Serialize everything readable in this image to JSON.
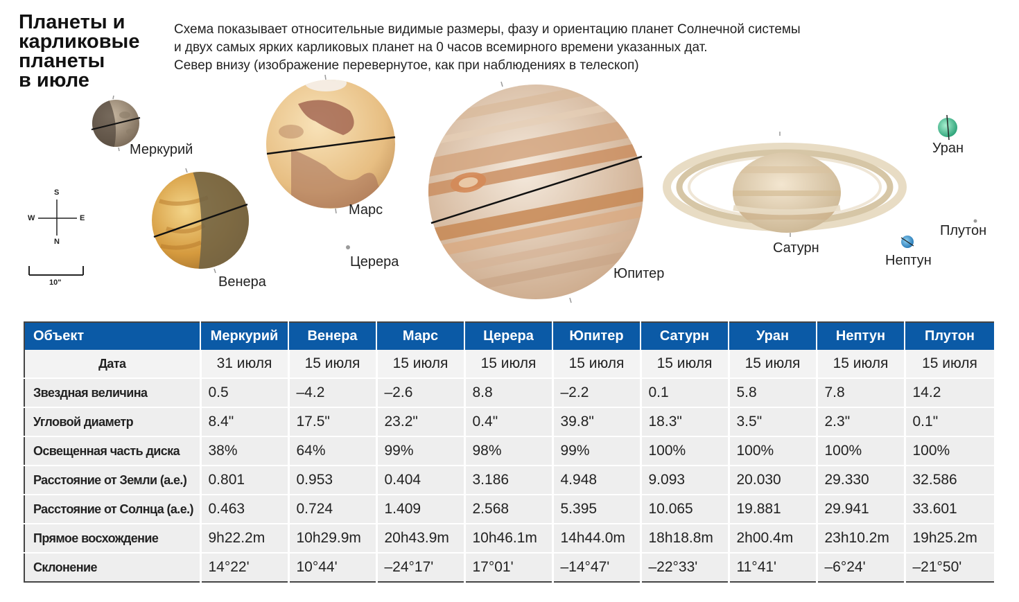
{
  "title": {
    "lines": [
      "Планеты и",
      "карликовые",
      "планеты",
      "в июле"
    ]
  },
  "description": {
    "lines": [
      "Схема показывает относительные видимые размеры, фазу и ориентацию планет Солнечной системы",
      "и двух самых ярких карликовых планет на 0 часов всемирного времени указанных дат.",
      "Север внизу (изображение перевернутое, как при наблюдениях в телескоп)"
    ]
  },
  "planets": {
    "mercury": "Меркурий",
    "venus": "Венера",
    "mars": "Марс",
    "ceres": "Церера",
    "jupiter": "Юпитер",
    "saturn": "Сатурн",
    "uranus": "Уран",
    "neptune": "Нептун",
    "pluto": "Плутон"
  },
  "compass": {
    "s": "S",
    "w": "W",
    "e": "E",
    "n": "N"
  },
  "scale_bar": {
    "label": "10\""
  },
  "colors": {
    "header": "#0b5aa6",
    "cell": "#eeeeee"
  },
  "table": {
    "columns": [
      "Объект",
      "Меркурий",
      "Венера",
      "Марс",
      "Церера",
      "Юпитер",
      "Сатурн",
      "Уран",
      "Нептун",
      "Плутон"
    ],
    "rows": [
      {
        "label": "Дата",
        "values": [
          "31 июля",
          "15 июля",
          "15 июля",
          "15 июля",
          "15 июля",
          "15 июля",
          "15 июля",
          "15 июля",
          "15 июля"
        ]
      },
      {
        "label": "Звездная величина",
        "values": [
          "0.5",
          "–4.2",
          "–2.6",
          "8.8",
          "–2.2",
          "0.1",
          "5.8",
          "7.8",
          "14.2"
        ]
      },
      {
        "label": "Угловой диаметр",
        "values": [
          "8.4\"",
          "17.5\"",
          "23.2\"",
          "0.4\"",
          "39.8\"",
          "18.3\"",
          "3.5\"",
          "2.3\"",
          "0.1\""
        ]
      },
      {
        "label": "Освещенная часть диска",
        "values": [
          "38%",
          "64%",
          "99%",
          "98%",
          "99%",
          "100%",
          "100%",
          "100%",
          "100%"
        ]
      },
      {
        "label": "Расстояние от Земли (а.е.)",
        "values": [
          "0.801",
          "0.953",
          "0.404",
          "3.186",
          "4.948",
          "9.093",
          "20.030",
          "29.330",
          "32.586"
        ]
      },
      {
        "label": "Расстояние от Солнца (а.е.)",
        "values": [
          "0.463",
          "0.724",
          "1.409",
          "2.568",
          "5.395",
          "10.065",
          "19.881",
          "29.941",
          "33.601"
        ]
      },
      {
        "label": "Прямое восхождение",
        "values": [
          "9h22.2m",
          "10h29.9m",
          "20h43.9m",
          "10h46.1m",
          "14h44.0m",
          "18h18.8m",
          "2h00.4m",
          "23h10.2m",
          "19h25.2m"
        ]
      },
      {
        "label": "Склонение",
        "values": [
          "14°22'",
          "10°44'",
          "–24°17'",
          "17°01'",
          "–14°47'",
          "–22°33'",
          "11°41'",
          "–6°24'",
          "–21°50'"
        ]
      }
    ]
  }
}
